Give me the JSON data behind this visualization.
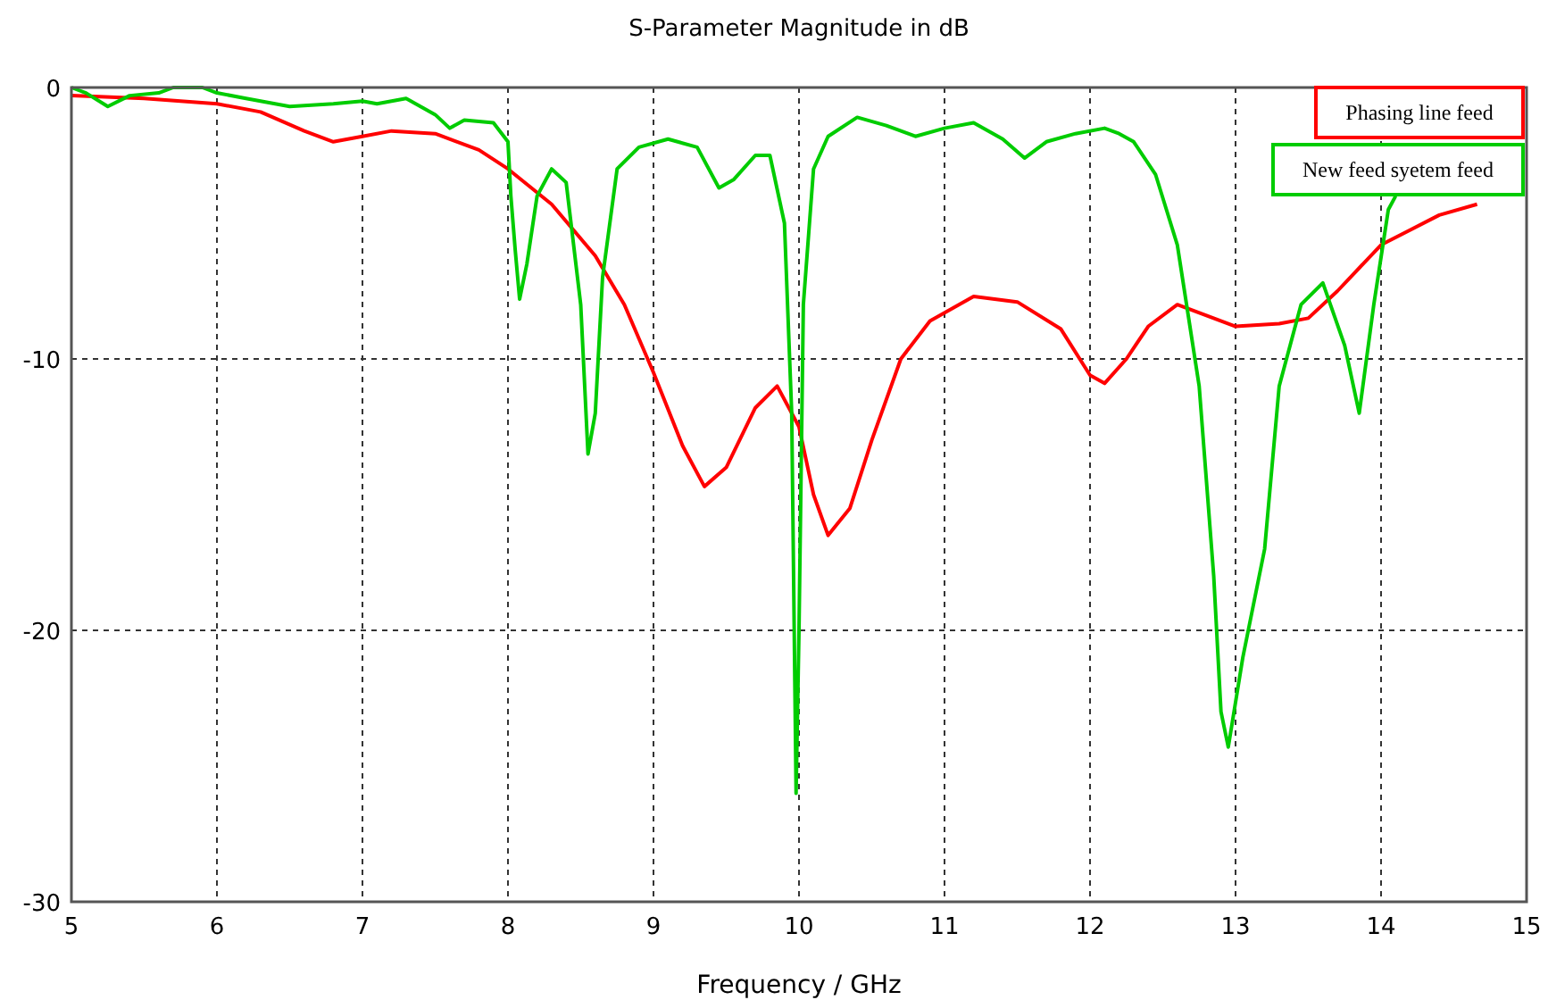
{
  "chart_data": {
    "type": "line",
    "title": "S-Parameter Magnitude in dB",
    "xlabel": "Frequency / GHz",
    "xlim": [
      5,
      15
    ],
    "xticks": [
      5,
      6,
      7,
      8,
      9,
      10,
      11,
      12,
      13,
      14,
      15
    ],
    "ylim": [
      -30,
      0
    ],
    "yticks": [
      -30,
      -20,
      -10,
      0
    ],
    "grid": true,
    "legend": "top right",
    "line_style": "solid",
    "series": [
      {
        "name": "Phasing line feed",
        "color": "#ff0000",
        "x": [
          5,
          5.5,
          6,
          6.3,
          6.6,
          6.8,
          7,
          7.2,
          7.5,
          7.8,
          8,
          8.3,
          8.6,
          8.8,
          9,
          9.2,
          9.35,
          9.5,
          9.7,
          9.85,
          10,
          10.1,
          10.2,
          10.35,
          10.5,
          10.7,
          10.9,
          11.2,
          11.5,
          11.8,
          12,
          12.1,
          12.25,
          12.4,
          12.6,
          12.8,
          13,
          13.3,
          13.5,
          13.7,
          14,
          14.4,
          14.66
        ],
        "values": [
          -0.3,
          -0.4,
          -0.6,
          -0.9,
          -1.6,
          -2,
          -1.8,
          -1.6,
          -1.7,
          -2.3,
          -3,
          -4.3,
          -6.2,
          -8,
          -10.5,
          -13.2,
          -14.7,
          -14,
          -11.8,
          -11,
          -12.5,
          -15,
          -16.5,
          -15.5,
          -13,
          -10,
          -8.6,
          -7.7,
          -7.9,
          -8.9,
          -10.6,
          -10.9,
          -10,
          -8.8,
          -8,
          -8.4,
          -8.8,
          -8.7,
          -8.5,
          -7.5,
          -5.8,
          -4.7,
          -4.3
        ]
      },
      {
        "name": "New feed syetem feed",
        "color": "#00cc00",
        "x": [
          5,
          5.1,
          5.25,
          5.4,
          5.6,
          5.7,
          5.9,
          6,
          6.2,
          6.5,
          6.8,
          7,
          7.1,
          7.3,
          7.5,
          7.6,
          7.7,
          7.9,
          8,
          8.02,
          8.05,
          8.08,
          8.13,
          8.2,
          8.3,
          8.4,
          8.5,
          8.55,
          8.6,
          8.65,
          8.75,
          8.9,
          9.1,
          9.3,
          9.45,
          9.55,
          9.7,
          9.8,
          9.9,
          9.95,
          9.98,
          10,
          10.03,
          10.1,
          10.2,
          10.4,
          10.6,
          10.8,
          11,
          11.2,
          11.4,
          11.55,
          11.7,
          11.9,
          12.1,
          12.2,
          12.3,
          12.45,
          12.6,
          12.75,
          12.85,
          12.9,
          12.95,
          13.05,
          13.2,
          13.3,
          13.45,
          13.6,
          13.75,
          13.85,
          13.95,
          14.05,
          14.1
        ],
        "values": [
          0,
          -0.2,
          -0.7,
          -0.3,
          -0.2,
          0,
          0,
          -0.2,
          -0.4,
          -0.7,
          -0.6,
          -0.5,
          -0.6,
          -0.4,
          -1,
          -1.5,
          -1.2,
          -1.3,
          -2,
          -4,
          -6,
          -7.8,
          -6.5,
          -4,
          -3,
          -3.5,
          -8,
          -13.5,
          -12,
          -7,
          -3,
          -2.2,
          -1.9,
          -2.2,
          -3.7,
          -3.4,
          -2.5,
          -2.5,
          -5,
          -12,
          -26,
          -20,
          -8,
          -3,
          -1.8,
          -1.1,
          -1.4,
          -1.8,
          -1.5,
          -1.3,
          -1.9,
          -2.6,
          -2,
          -1.7,
          -1.5,
          -1.7,
          -2,
          -3.2,
          -5.8,
          -11,
          -18,
          -23,
          -24.3,
          -21,
          -17,
          -11,
          -8,
          -7.2,
          -9.5,
          -12,
          -8,
          -4.5,
          -4
        ]
      }
    ]
  }
}
